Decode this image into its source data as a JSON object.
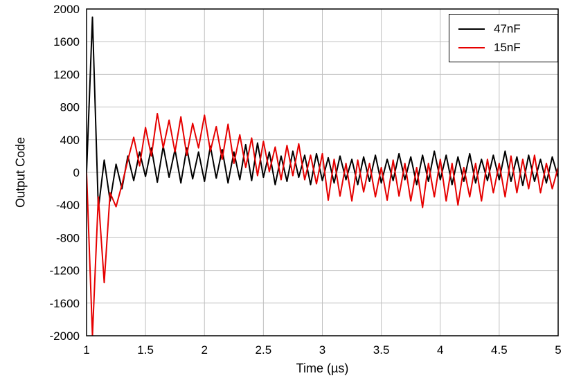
{
  "chart_data": {
    "type": "line",
    "title": "",
    "xlabel": "Time (µs)",
    "ylabel": "Output Code",
    "xlim": [
      1,
      5
    ],
    "ylim": [
      -2000,
      2000
    ],
    "x_ticks": [
      1,
      1.5,
      2,
      2.5,
      3,
      3.5,
      4,
      4.5,
      5
    ],
    "y_ticks": [
      -2000,
      -1600,
      -1200,
      -800,
      -400,
      0,
      400,
      800,
      1200,
      1600,
      2000
    ],
    "grid": true,
    "grid_color": "#c0c0c0",
    "legend_position": "top-right",
    "x": [
      1,
      1.05,
      1.1,
      1.15,
      1.2,
      1.25,
      1.3,
      1.35,
      1.4,
      1.45,
      1.5,
      1.55,
      1.6,
      1.65,
      1.7,
      1.75,
      1.8,
      1.85,
      1.9,
      1.95,
      2,
      2.05,
      2.1,
      2.15,
      2.2,
      2.25,
      2.3,
      2.35,
      2.4,
      2.45,
      2.5,
      2.55,
      2.6,
      2.65,
      2.7,
      2.75,
      2.8,
      2.85,
      2.9,
      2.95,
      3,
      3.05,
      3.1,
      3.15,
      3.2,
      3.25,
      3.3,
      3.35,
      3.4,
      3.45,
      3.5,
      3.55,
      3.6,
      3.65,
      3.7,
      3.75,
      3.8,
      3.85,
      3.9,
      3.95,
      4,
      4.05,
      4.1,
      4.15,
      4.2,
      4.25,
      4.3,
      4.35,
      4.4,
      4.45,
      4.5,
      4.55,
      4.6,
      4.65,
      4.7,
      4.75,
      4.8,
      4.85,
      4.9,
      4.95,
      5
    ],
    "series": [
      {
        "name": "47nF",
        "color": "#000000",
        "values": [
          0,
          1900,
          -450,
          150,
          -350,
          100,
          -200,
          200,
          -100,
          250,
          -50,
          300,
          -120,
          320,
          -60,
          280,
          -130,
          300,
          -80,
          250,
          -110,
          320,
          -70,
          280,
          -130,
          250,
          -90,
          340,
          -100,
          360,
          -60,
          250,
          -150,
          200,
          -110,
          260,
          -60,
          210,
          -150,
          230,
          -100,
          180,
          -130,
          200,
          -90,
          160,
          -150,
          190,
          -110,
          210,
          -130,
          160,
          -100,
          230,
          -90,
          190,
          -150,
          210,
          -110,
          260,
          -90,
          210,
          -150,
          190,
          -110,
          230,
          -130,
          160,
          -100,
          210,
          -90,
          260,
          -110,
          190,
          -160,
          210,
          -110,
          160,
          -130,
          190,
          -60
        ]
      },
      {
        "name": "15nF",
        "color": "#e60000",
        "values": [
          0,
          -2000,
          -300,
          -1350,
          -250,
          -420,
          -150,
          150,
          430,
          80,
          550,
          200,
          720,
          300,
          640,
          250,
          680,
          210,
          600,
          300,
          700,
          260,
          560,
          160,
          590,
          110,
          460,
          60,
          420,
          -40,
          380,
          10,
          310,
          -90,
          330,
          -40,
          350,
          -90,
          210,
          -140,
          230,
          -340,
          160,
          -290,
          110,
          -350,
          150,
          -240,
          110,
          -300,
          60,
          -340,
          150,
          -290,
          110,
          -350,
          60,
          -430,
          110,
          -300,
          160,
          -350,
          110,
          -400,
          60,
          -300,
          110,
          -350,
          160,
          -250,
          110,
          -300,
          200,
          -250,
          160,
          -200,
          210,
          -250,
          110,
          -200,
          60
        ]
      }
    ]
  }
}
